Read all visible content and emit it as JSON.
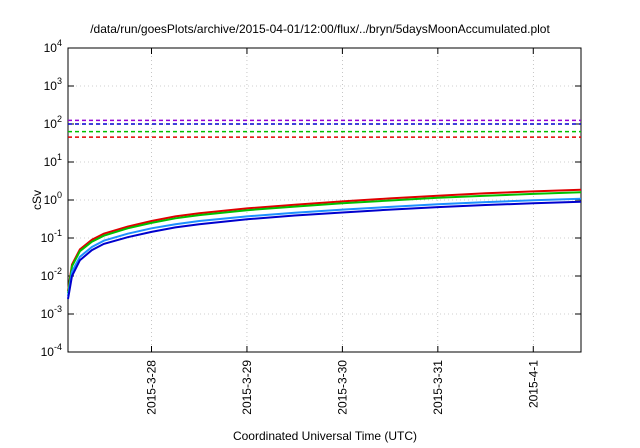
{
  "chart_data": {
    "type": "line",
    "title": "/data/run/goesPlots/archive/2015-04-01/12:00/flux/../bryn/5daysMoonAccumulated.plot",
    "xlabel": "Coordinated Universal Time (UTC)",
    "ylabel": "cSv",
    "y_scale": "log",
    "ylim": [
      0.0001,
      10000
    ],
    "xlim": [
      "2015-03-27 03:00",
      "2015-04-01 12:00"
    ],
    "y_ticks": [
      {
        "base": "10",
        "exp": "-4",
        "value": 0.0001
      },
      {
        "base": "10",
        "exp": "-3",
        "value": 0.001
      },
      {
        "base": "10",
        "exp": "-2",
        "value": 0.01
      },
      {
        "base": "10",
        "exp": "-1",
        "value": 0.1
      },
      {
        "base": "10",
        "exp": "0",
        "value": 1
      },
      {
        "base": "10",
        "exp": "1",
        "value": 10
      },
      {
        "base": "10",
        "exp": "2",
        "value": 100
      },
      {
        "base": "10",
        "exp": "3",
        "value": 1000
      },
      {
        "base": "10",
        "exp": "4",
        "value": 10000
      }
    ],
    "x_ticks": [
      {
        "label": "2015-3-28",
        "date": "2015-03-28 00:00"
      },
      {
        "label": "2015-3-29",
        "date": "2015-03-29 00:00"
      },
      {
        "label": "2015-3-30",
        "date": "2015-03-30 00:00"
      },
      {
        "label": "2015-3-31",
        "date": "2015-03-31 00:00"
      },
      {
        "label": "2015-4-1",
        "date": "2015-04-01 00:00"
      }
    ],
    "grid": true,
    "thresholds": [
      {
        "color": "#9400d3",
        "value": 125
      },
      {
        "color": "#0000cd",
        "value": 100
      },
      {
        "color": "#00c000",
        "value": 63
      },
      {
        "color": "#e00000",
        "value": 45
      }
    ],
    "series": [
      {
        "color": "#e00000",
        "points": [
          [
            "2015-03-27 03:00",
            0.004
          ],
          [
            "2015-03-27 04:00",
            0.02
          ],
          [
            "2015-03-27 06:00",
            0.05
          ],
          [
            "2015-03-27 09:00",
            0.09
          ],
          [
            "2015-03-27 12:00",
            0.13
          ],
          [
            "2015-03-27 18:00",
            0.2
          ],
          [
            "2015-03-28 00:00",
            0.28
          ],
          [
            "2015-03-28 06:00",
            0.37
          ],
          [
            "2015-03-28 12:00",
            0.45
          ],
          [
            "2015-03-29 00:00",
            0.6
          ],
          [
            "2015-03-29 12:00",
            0.75
          ],
          [
            "2015-03-30 00:00",
            0.92
          ],
          [
            "2015-03-30 12:00",
            1.1
          ],
          [
            "2015-03-31 00:00",
            1.3
          ],
          [
            "2015-03-31 12:00",
            1.5
          ],
          [
            "2015-04-01 00:00",
            1.68
          ],
          [
            "2015-04-01 12:00",
            1.85
          ]
        ]
      },
      {
        "color": "#00c000",
        "points": [
          [
            "2015-03-27 03:00",
            0.0035
          ],
          [
            "2015-03-27 04:00",
            0.018
          ],
          [
            "2015-03-27 06:00",
            0.045
          ],
          [
            "2015-03-27 09:00",
            0.08
          ],
          [
            "2015-03-27 12:00",
            0.115
          ],
          [
            "2015-03-27 18:00",
            0.18
          ],
          [
            "2015-03-28 00:00",
            0.25
          ],
          [
            "2015-03-28 06:00",
            0.33
          ],
          [
            "2015-03-28 12:00",
            0.4
          ],
          [
            "2015-03-29 00:00",
            0.54
          ],
          [
            "2015-03-29 12:00",
            0.67
          ],
          [
            "2015-03-30 00:00",
            0.82
          ],
          [
            "2015-03-30 12:00",
            0.97
          ],
          [
            "2015-03-31 00:00",
            1.15
          ],
          [
            "2015-03-31 12:00",
            1.3
          ],
          [
            "2015-04-01 00:00",
            1.45
          ],
          [
            "2015-04-01 12:00",
            1.6
          ]
        ]
      },
      {
        "color": "#1e90ff",
        "points": [
          [
            "2015-03-27 03:00",
            0.003
          ],
          [
            "2015-03-27 04:00",
            0.013
          ],
          [
            "2015-03-27 06:00",
            0.032
          ],
          [
            "2015-03-27 09:00",
            0.058
          ],
          [
            "2015-03-27 12:00",
            0.085
          ],
          [
            "2015-03-27 18:00",
            0.13
          ],
          [
            "2015-03-28 00:00",
            0.18
          ],
          [
            "2015-03-28 06:00",
            0.23
          ],
          [
            "2015-03-28 12:00",
            0.28
          ],
          [
            "2015-03-29 00:00",
            0.37
          ],
          [
            "2015-03-29 12:00",
            0.46
          ],
          [
            "2015-03-30 00:00",
            0.56
          ],
          [
            "2015-03-30 12:00",
            0.66
          ],
          [
            "2015-03-31 00:00",
            0.77
          ],
          [
            "2015-03-31 12:00",
            0.88
          ],
          [
            "2015-04-01 00:00",
            0.98
          ],
          [
            "2015-04-01 12:00",
            1.08
          ]
        ]
      },
      {
        "color": "#0000cd",
        "points": [
          [
            "2015-03-27 03:00",
            0.0025
          ],
          [
            "2015-03-27 04:00",
            0.01
          ],
          [
            "2015-03-27 06:00",
            0.026
          ],
          [
            "2015-03-27 09:00",
            0.048
          ],
          [
            "2015-03-27 12:00",
            0.07
          ],
          [
            "2015-03-27 18:00",
            0.105
          ],
          [
            "2015-03-28 00:00",
            0.145
          ],
          [
            "2015-03-28 06:00",
            0.19
          ],
          [
            "2015-03-28 12:00",
            0.23
          ],
          [
            "2015-03-29 00:00",
            0.31
          ],
          [
            "2015-03-29 12:00",
            0.39
          ],
          [
            "2015-03-30 00:00",
            0.47
          ],
          [
            "2015-03-30 12:00",
            0.56
          ],
          [
            "2015-03-31 00:00",
            0.65
          ],
          [
            "2015-03-31 12:00",
            0.74
          ],
          [
            "2015-04-01 00:00",
            0.82
          ],
          [
            "2015-04-01 12:00",
            0.9
          ]
        ]
      }
    ]
  }
}
